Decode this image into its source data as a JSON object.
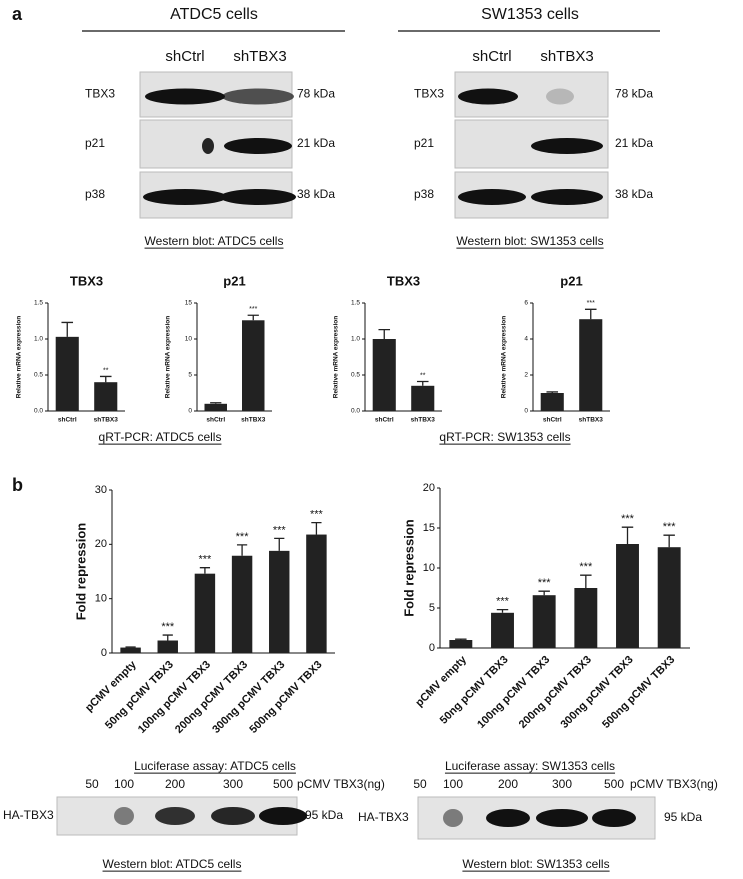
{
  "panel_labels": [
    "a",
    "b"
  ],
  "blots_a": [
    {
      "title": "ATDC5 cells",
      "lanes": [
        "shCtrl",
        "shTBX3"
      ],
      "rows": [
        {
          "label": "TBX3",
          "size": "78 kDa"
        },
        {
          "label": "p21",
          "size": "21 kDa"
        },
        {
          "label": "p38",
          "size": "38 kDa"
        }
      ],
      "caption": "Western blot: ATDC5 cells"
    },
    {
      "title": "SW1353 cells",
      "lanes": [
        "shCtrl",
        "shTBX3"
      ],
      "rows": [
        {
          "label": "TBX3",
          "size": "78 kDa"
        },
        {
          "label": "p21",
          "size": "21 kDa"
        },
        {
          "label": "p38",
          "size": "38 kDa"
        }
      ],
      "caption": "Western blot: SW1353 cells"
    }
  ],
  "qpcr_captions": [
    "qRT-PCR: ATDC5 cells",
    "qRT-PCR: SW1353 cells"
  ],
  "luciferase_captions": [
    "Luciferase assay: ATDC5 cells",
    "Luciferase assay: SW1353 cells"
  ],
  "blots_b": [
    {
      "lanes": [
        "50",
        "100",
        "200",
        "300",
        "500"
      ],
      "lane_unit": "pCMV TBX3(ng)",
      "label": "HA-TBX3",
      "size": "95 kDa",
      "caption": "Western blot: ATDC5 cells"
    },
    {
      "lanes": [
        "50",
        "100",
        "200",
        "300",
        "500"
      ],
      "lane_unit": "pCMV TBX3(ng)",
      "label": "HA-TBX3",
      "size": "95 kDa",
      "caption": "Western blot: SW1353 cells"
    }
  ],
  "chart_data": [
    {
      "type": "bar",
      "title": "TBX3",
      "y_label": "Relative mRNA expression",
      "categories": [
        "shCtrl",
        "shTBX3"
      ],
      "values": [
        1.03,
        0.4
      ],
      "errors": [
        0.2,
        0.08
      ],
      "annotations": [
        null,
        "**"
      ],
      "color": "#222222",
      "ylim": [
        0,
        1.5
      ],
      "yticks": [
        {
          "value": 0,
          "label": "0.0"
        },
        0.5,
        {
          "value": 1,
          "label": "1.0"
        },
        1.5
      ]
    },
    {
      "type": "bar",
      "title": "p21",
      "y_label": "Relative mRNA expression",
      "categories": [
        "shCtrl",
        "shTBX3"
      ],
      "values": [
        1.0,
        12.6
      ],
      "errors": [
        0.15,
        0.7
      ],
      "annotations": [
        null,
        "***"
      ],
      "color": "#222222",
      "ylim": [
        0,
        15
      ],
      "yticks": [
        0,
        5,
        10,
        15
      ]
    },
    {
      "type": "bar",
      "title": "TBX3",
      "y_label": "Relative mRNA expression",
      "categories": [
        "shCtrl",
        "shTBX3"
      ],
      "values": [
        1.0,
        0.35
      ],
      "errors": [
        0.13,
        0.06
      ],
      "annotations": [
        null,
        "**"
      ],
      "color": "#222222",
      "ylim": [
        0,
        1.5
      ],
      "yticks": [
        {
          "value": 0,
          "label": "0.0"
        },
        0.5,
        {
          "value": 1,
          "label": "1.0"
        },
        1.5
      ]
    },
    {
      "type": "bar",
      "title": "p21",
      "y_label": "Relative mRNA expression",
      "categories": [
        "shCtrl",
        "shTBX3"
      ],
      "values": [
        1.0,
        5.1
      ],
      "errors": [
        0.06,
        0.55
      ],
      "annotations": [
        null,
        "***"
      ],
      "color": "#222222",
      "ylim": [
        0,
        6
      ],
      "yticks": [
        0,
        2,
        4,
        6
      ]
    },
    {
      "type": "bar",
      "y_label": "Fold repression",
      "categories": [
        "pCMV empty",
        "50ng pCMV TBX3",
        "100ng pCMV TBX3",
        "200ng pCMV TBX3",
        "300ng pCMV TBX3",
        "500ng pCMV TBX3"
      ],
      "values": [
        1.0,
        2.3,
        14.6,
        17.9,
        18.8,
        21.8
      ],
      "errors": [
        0.1,
        1.0,
        1.1,
        2.0,
        2.3,
        2.2
      ],
      "annotations": [
        null,
        "***",
        "***",
        "***",
        "***",
        "***"
      ],
      "color": "#222222",
      "ylim": [
        0,
        30
      ],
      "yticks": [
        0,
        10,
        20,
        30
      ]
    },
    {
      "type": "bar",
      "y_label": "Fold repression",
      "categories": [
        "pCMV empty",
        "50ng pCMV TBX3",
        "100ng pCMV TBX3",
        "200ng pCMV TBX3",
        "300ng pCMV TBX3",
        "500ng pCMV TBX3"
      ],
      "values": [
        1.0,
        4.4,
        6.6,
        7.5,
        13.0,
        12.6
      ],
      "errors": [
        0.1,
        0.4,
        0.5,
        1.6,
        2.1,
        1.5
      ],
      "annotations": [
        null,
        "***",
        "***",
        "***",
        "***",
        "***"
      ],
      "color": "#222222",
      "ylim": [
        0,
        20
      ],
      "yticks": [
        0,
        5,
        10,
        15,
        20
      ]
    }
  ]
}
